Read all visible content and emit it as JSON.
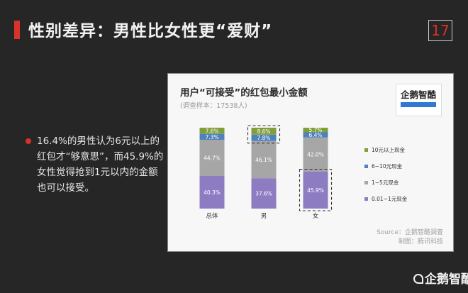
{
  "page": {
    "title": "性别差异：男性比女性更“爱财”",
    "page_number": "17"
  },
  "bullet": {
    "text": "16.4%的男性认为6元以上的红包才“够意思”，而45.9%的女性觉得抢到1元以内的金额也可以接受。"
  },
  "logo": {
    "text": "企鹅智酷"
  },
  "source": {
    "line1": "Source：企鹅智酷调查",
    "line2": "制图：腾讯科技"
  },
  "footer": {
    "logo_text": "企鹅智酷"
  },
  "colors": {
    "accent": "#d9322b",
    "series": [
      "#8e7cc3",
      "#a6a6a6",
      "#4f81bd",
      "#7f9f3d"
    ]
  },
  "chart_data": {
    "type": "bar",
    "stacked": true,
    "title": "用户“可接受”的红包最小金额",
    "subtitle": "(调查样本：17538人)",
    "categories": [
      "总体",
      "男",
      "女"
    ],
    "series": [
      {
        "name": "0.01~1元现金",
        "values": [
          40.3,
          37.6,
          45.9
        ],
        "labels": [
          "40.3%",
          "37.6%",
          "45.9%"
        ]
      },
      {
        "name": "1~5元现金",
        "values": [
          44.7,
          46.1,
          42.0
        ],
        "labels": [
          "44.7%",
          "46.1%",
          "42.0%"
        ]
      },
      {
        "name": "6~10元现金",
        "values": [
          7.3,
          7.8,
          6.4
        ],
        "labels": [
          "7.3%",
          "7.8%",
          "6.4%"
        ]
      },
      {
        "name": "10元以上现金",
        "values": [
          7.6,
          8.6,
          5.7
        ],
        "labels": [
          "7.6%",
          "8.6%",
          "5.7%"
        ]
      }
    ],
    "legend_order": [
      "10元以上现金",
      "6~10元现金",
      "1~5元现金",
      "0.01~1元现金"
    ],
    "legend_position": "right",
    "highlights": [
      {
        "category": "男",
        "series": [
          "10元以上现金",
          "6~10元现金"
        ]
      },
      {
        "category": "女",
        "series": [
          "0.01~1元现金"
        ]
      }
    ],
    "ylim": [
      0,
      100
    ],
    "grid": false
  }
}
